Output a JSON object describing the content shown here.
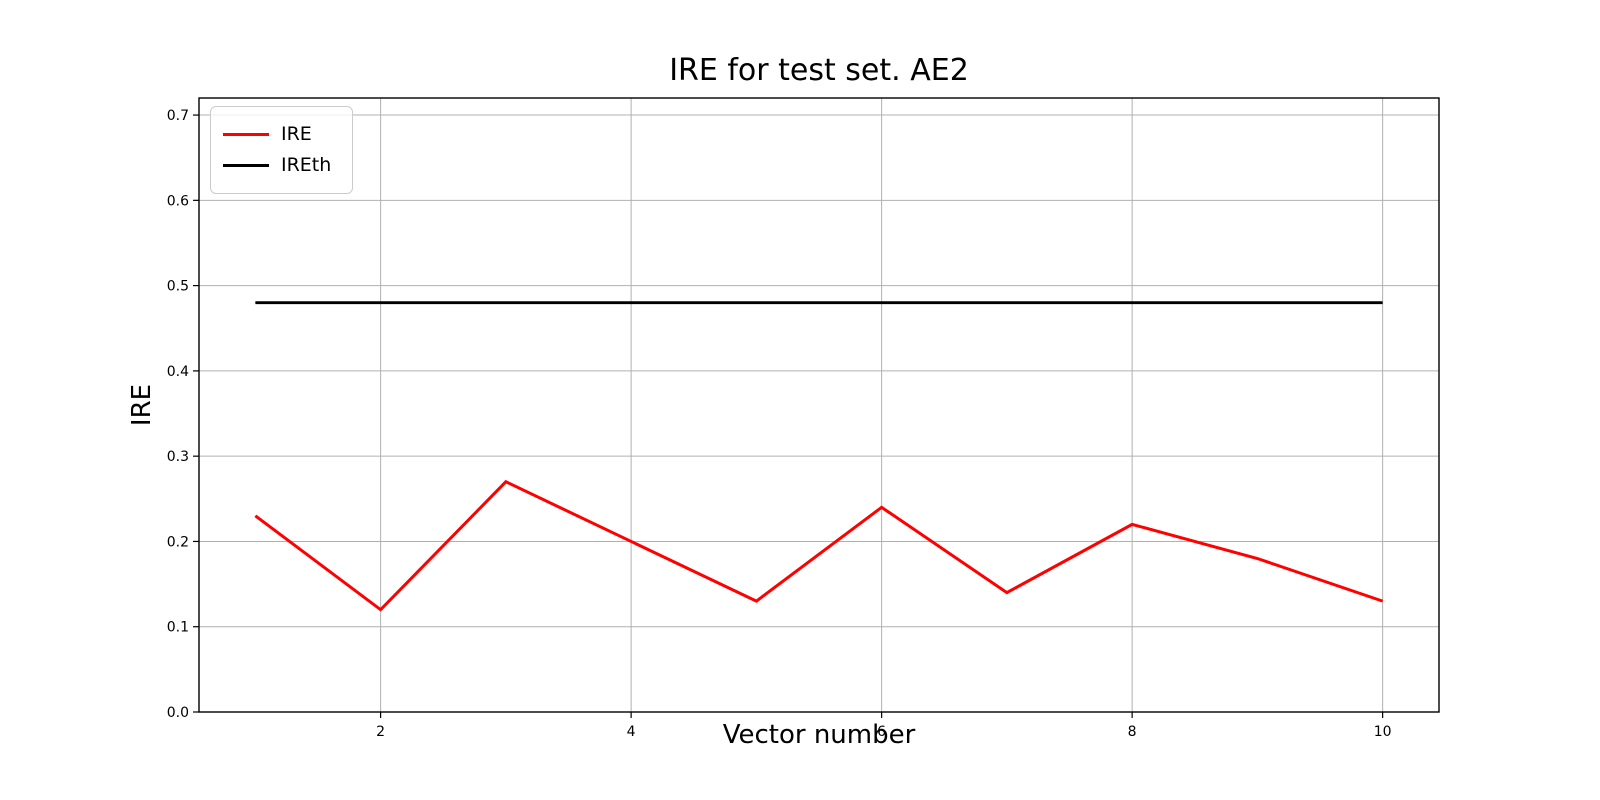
{
  "chart_data": {
    "type": "line",
    "title": "IRE for test set. AE2",
    "xlabel": "Vector number",
    "ylabel": "IRE",
    "x": [
      1,
      2,
      3,
      4,
      5,
      6,
      7,
      8,
      9,
      10
    ],
    "series": [
      {
        "name": "IRE",
        "color": "#ff0000",
        "linewidth": 3,
        "values": [
          0.23,
          0.12,
          0.27,
          0.2,
          0.13,
          0.24,
          0.14,
          0.22,
          0.18,
          0.13
        ]
      },
      {
        "name": "IREth",
        "color": "#000000",
        "linewidth": 2.8,
        "values": [
          0.48,
          0.48,
          0.48,
          0.48,
          0.48,
          0.48,
          0.48,
          0.48,
          0.48,
          0.48
        ]
      }
    ],
    "xlim": [
      0.55,
      10.45
    ],
    "ylim": [
      0,
      0.72
    ],
    "xticks": [
      2,
      4,
      6,
      8,
      10
    ],
    "yticks": [
      0.0,
      0.1,
      0.2,
      0.3,
      0.4,
      0.5,
      0.6,
      0.7
    ],
    "grid": true,
    "grid_color": "#b0b0b0",
    "axis_color": "#000000",
    "background": "#ffffff",
    "legend_position": "upper-left"
  }
}
